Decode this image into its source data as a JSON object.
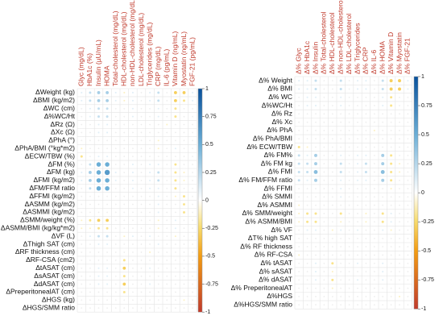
{
  "chart_data": [
    {
      "type": "corrplot",
      "columns": [
        "Glyc (mg/dL)",
        "HbA1c (%)",
        "Insulin (µU/mL)",
        "HOMA",
        "Total-cholesterol (mg/dL)",
        "HDL-cholesterol (mg/dL)",
        "non-HDL-cholesterol (mg/dL)",
        "LDL-cholesterol (mg/dL)",
        "Triglycerides (mg/dL)",
        "CRP (mg/dL)",
        "IL-6 (pg/mL)",
        "Vitamin D (ng/mL)",
        "Myostatin (ng/mL)",
        "FGF-21 (pg/mL)"
      ],
      "rows": [
        "ΔWeight (kg)",
        "ΔBMI (kg/m2)",
        "ΔWC (cm)",
        "Δ%WC/Ht",
        "ΔRz (Ω)",
        "ΔXc (Ω)",
        "ΔPhA (°)",
        "ΔPhA/BMI (°kg*m2)",
        "ΔECW/TBW (%)",
        "ΔFM (%)",
        "ΔFM (kg)",
        "ΔFMI (kg/m2)",
        "ΔFM/FFM ratio",
        "ΔFFMI (kg/m2)",
        "ΔASMM (kg/m2)",
        "ΔASMMI (kg/m2)",
        "ΔSMM/weight (%)",
        "ΔASMM/BMI (kg/kg*m2)",
        "ΔVF (L)",
        "ΔThigh SAT (cm)",
        "ΔRF thickness (cm)",
        "ΔRF-CSA (cm2)",
        "ΔtASAT (cm)",
        "ΔsASAT (cm)",
        "ΔdASAT (cm)",
        "ΔPreperitonealAT (cm)",
        "ΔHGS (kg)",
        "ΔHGS/SMM ratio"
      ],
      "values": [
        [
          0.1,
          0.2,
          0.3,
          0.3,
          0.1,
          -0.1,
          0.1,
          0,
          0.1,
          0.2,
          0,
          -0.3,
          -0.3,
          0.1
        ],
        [
          0.1,
          0.2,
          0.3,
          0.3,
          0.1,
          -0.1,
          0.1,
          0,
          0.1,
          0.2,
          0,
          -0.3,
          -0.2,
          0.1
        ],
        [
          0,
          0.1,
          0.2,
          0.2,
          0,
          0,
          0.1,
          0,
          0,
          0.1,
          0,
          -0.2,
          0,
          0
        ],
        [
          0,
          0.1,
          0.2,
          0.2,
          0,
          0,
          0.1,
          0,
          0,
          0.1,
          0,
          -0.2,
          0,
          0
        ],
        [
          0,
          0,
          0.1,
          0.1,
          0,
          0,
          0,
          0,
          0,
          0,
          -0.1,
          0,
          0,
          0
        ],
        [
          0,
          0,
          0.1,
          0.1,
          0,
          0,
          0,
          0,
          0,
          0,
          0,
          0,
          0,
          0
        ],
        [
          0,
          0,
          0,
          0,
          0,
          0,
          0,
          0,
          0,
          -0.1,
          0,
          0,
          0,
          0
        ],
        [
          -0.1,
          0,
          0,
          0,
          0,
          0,
          0,
          0,
          0,
          -0.1,
          0,
          0.1,
          0,
          0
        ],
        [
          -0.2,
          0,
          0.1,
          0.1,
          0,
          0,
          0,
          0,
          0,
          0,
          0,
          0,
          0,
          0
        ],
        [
          0,
          0.2,
          0.5,
          0.5,
          0,
          0,
          0.1,
          0,
          0.1,
          0.1,
          0,
          -0.2,
          0,
          0
        ],
        [
          0.1,
          0.3,
          0.5,
          0.6,
          0.1,
          0,
          0.1,
          0,
          0.1,
          0.2,
          0,
          -0.2,
          -0.1,
          0
        ],
        [
          0.1,
          0.3,
          0.5,
          0.5,
          0.1,
          0,
          0.1,
          0,
          0.1,
          0.2,
          0,
          -0.2,
          -0.1,
          0
        ],
        [
          0,
          0.2,
          0.5,
          0.5,
          0,
          0,
          0.1,
          0,
          0.1,
          0.1,
          0,
          -0.2,
          0,
          0
        ],
        [
          0,
          0,
          0,
          0,
          0,
          0,
          0,
          0,
          0,
          0.1,
          0,
          -0.1,
          -0.2,
          0
        ],
        [
          0,
          0,
          0,
          0,
          0,
          0,
          0,
          0,
          0,
          0.1,
          0,
          0,
          -0.2,
          0
        ],
        [
          0,
          0,
          0,
          0,
          0,
          0,
          0,
          0,
          0,
          0.1,
          0,
          0,
          -0.2,
          0
        ],
        [
          -0.1,
          -0.2,
          -0.3,
          -0.3,
          0,
          0,
          0,
          0,
          0,
          -0.1,
          0,
          0.1,
          0,
          0
        ],
        [
          -0.1,
          -0.1,
          -0.2,
          -0.2,
          0,
          0,
          0,
          0,
          0,
          -0.1,
          0,
          0.1,
          0,
          0
        ],
        [
          0,
          0.1,
          0.2,
          0.2,
          0,
          -0.1,
          0.1,
          0,
          0.1,
          0,
          0,
          -0.1,
          0,
          0
        ],
        [
          0,
          0,
          0.1,
          0.1,
          0,
          0,
          0,
          0,
          0,
          0.1,
          0,
          0,
          0,
          0
        ],
        [
          0,
          0,
          0,
          0,
          0,
          0,
          0,
          0,
          -0.1,
          0,
          0,
          0,
          0,
          0
        ],
        [
          0,
          0,
          0,
          0,
          0,
          -0.2,
          0,
          0,
          0,
          0,
          0,
          0,
          0,
          0
        ],
        [
          0,
          0,
          0.1,
          0.1,
          0,
          -0.3,
          0,
          0,
          0.1,
          0,
          0,
          0,
          0,
          0
        ],
        [
          0,
          0,
          0.1,
          0.1,
          0,
          -0.2,
          0,
          0,
          0,
          0,
          0,
          0,
          0,
          0
        ],
        [
          0,
          0,
          0.1,
          0.1,
          0,
          -0.3,
          0,
          0,
          0.1,
          0,
          0,
          0,
          0,
          0
        ],
        [
          0,
          0,
          0,
          0,
          0,
          -0.2,
          0,
          0,
          0,
          0,
          0,
          0,
          0,
          0
        ],
        [
          0,
          0,
          0,
          0,
          0,
          0,
          0,
          0,
          0,
          0,
          0,
          0,
          -0.1,
          0
        ],
        [
          0,
          0,
          0,
          0,
          0,
          0,
          0,
          0,
          0,
          0,
          0,
          0,
          0,
          0
        ]
      ],
      "clim": [
        -1,
        1
      ],
      "cticks": [
        1,
        0.75,
        0.5,
        0.25,
        0,
        -0.25,
        -0.5,
        -0.75,
        -1
      ]
    },
    {
      "type": "corrplot",
      "columns": [
        "Δ% Glyc",
        "Δ% HbA1c",
        "Δ% Insulin",
        "Δ% Total-cholesterol",
        "Δ% HDL-cholesterol",
        "Δ% non-HDL-cholesterol",
        "Δ% LDL-cholesterol",
        "Δ% Triglycerides",
        "Δ% CRP",
        "Δ% IL-6",
        "Δ% HOMA",
        "Δ% Vitamin D",
        "Δ% Myostatin",
        "Δ% FGF-21"
      ],
      "rows": [
        "Δ% Weight",
        "Δ% BMI",
        "Δ% WC",
        "Δ%WC/Ht",
        "Δ% Rz",
        "Δ% Xc",
        "Δ% PhA",
        "Δ% PhA/BMI",
        "Δ% ECW/TBW",
        "Δ% FM%",
        "Δ% FM kg",
        "Δ% FMI",
        "Δ% FM/FFM ratio",
        "Δ% FFMI",
        "Δ% SMMI",
        "Δ% ASMMI",
        "Δ% SMM/weight",
        "Δ% ASMM/BMI",
        "Δ% VF",
        "ΔT% high SAT",
        "Δ% RF thickness",
        "Δ% RF-CSA",
        "Δ% tASAT",
        "Δ% sASAT",
        "Δ% dASAT",
        "Δ% PreperitonealAT",
        "Δ%HGS",
        "Δ%HGS/SMM ratio"
      ],
      "values": [
        [
          0.1,
          0.1,
          0.2,
          0,
          0,
          0.2,
          0,
          0.1,
          0.1,
          0,
          0.2,
          -0.3,
          -0.3,
          0.1
        ],
        [
          0.1,
          0.1,
          0.2,
          0,
          0,
          0.2,
          0,
          0.1,
          0.1,
          0,
          0.2,
          -0.3,
          -0.3,
          0.1
        ],
        [
          0,
          0.1,
          0.1,
          0,
          0,
          0.1,
          0,
          0,
          0,
          0,
          0.1,
          -0.2,
          0,
          0
        ],
        [
          0,
          0.1,
          0.1,
          0,
          0,
          0.1,
          0,
          0,
          0,
          0,
          0.1,
          -0.2,
          0,
          0
        ],
        [
          0,
          0,
          0,
          0,
          0,
          0,
          0,
          0,
          0,
          0,
          0,
          0,
          0,
          0
        ],
        [
          0,
          0,
          0,
          0,
          0,
          0,
          0,
          0,
          0,
          0,
          0,
          0,
          0,
          0
        ],
        [
          0,
          0,
          0,
          0,
          0,
          0,
          0,
          0,
          0,
          -0.1,
          0,
          0,
          0,
          0
        ],
        [
          0,
          0,
          0,
          0,
          0,
          0,
          0,
          0,
          0,
          0,
          0,
          0,
          0,
          0
        ],
        [
          -0.2,
          -0.1,
          0,
          0,
          0,
          0,
          0,
          0,
          0,
          0,
          0,
          0,
          0,
          0
        ],
        [
          0.2,
          0.1,
          0.3,
          0,
          0,
          0.1,
          0,
          0.1,
          0.1,
          0,
          0.3,
          -0.2,
          0,
          0
        ],
        [
          0.2,
          0.2,
          0.3,
          0,
          0,
          0.2,
          0,
          0.1,
          0.2,
          0,
          0.3,
          -0.2,
          -0.1,
          0
        ],
        [
          0.2,
          0.2,
          0.4,
          0,
          0,
          0.2,
          0,
          0.1,
          0.2,
          0,
          0.4,
          -0.2,
          -0.1,
          0
        ],
        [
          0.2,
          0.1,
          0.3,
          0,
          0,
          0.1,
          0,
          0.1,
          0.1,
          0,
          0.3,
          -0.2,
          0,
          0
        ],
        [
          0,
          0,
          0,
          0,
          0,
          0.1,
          0,
          0,
          0,
          0,
          0,
          -0.1,
          0,
          0
        ],
        [
          0,
          0,
          0,
          0,
          0,
          0.1,
          0,
          0,
          0,
          0,
          0,
          0,
          0,
          0
        ],
        [
          -0.1,
          0,
          0,
          0,
          0,
          0,
          0,
          0,
          0,
          0,
          0,
          0,
          0,
          0
        ],
        [
          -0.1,
          -0.2,
          -0.2,
          0,
          0,
          -0.2,
          0,
          0,
          -0.1,
          0,
          -0.2,
          0.1,
          0,
          0
        ],
        [
          -0.1,
          -0.2,
          -0.2,
          0,
          0,
          -0.1,
          0,
          0,
          -0.1,
          0,
          -0.2,
          0.1,
          0,
          0
        ],
        [
          0,
          0.1,
          0.1,
          0,
          -0.1,
          0.1,
          0,
          0.1,
          0,
          0,
          0.1,
          -0.1,
          0,
          0
        ],
        [
          0,
          0,
          0,
          0,
          0,
          0,
          0,
          0,
          0,
          0,
          0,
          0,
          0,
          0
        ],
        [
          0,
          0,
          0,
          0,
          0,
          0,
          0,
          0,
          0,
          0,
          0,
          0,
          0,
          0
        ],
        [
          -0.1,
          0,
          0,
          0,
          0,
          0,
          0,
          0,
          0,
          0,
          0,
          0,
          0,
          0
        ],
        [
          0,
          0,
          0.1,
          0,
          -0.2,
          0,
          0,
          0.1,
          0,
          0,
          0.1,
          0,
          0,
          0
        ],
        [
          0,
          0,
          0.1,
          0,
          -0.1,
          0,
          0,
          0,
          0,
          0,
          0.1,
          0,
          0,
          0
        ],
        [
          0,
          0,
          0.1,
          0,
          -0.2,
          0,
          0,
          0.1,
          0,
          0,
          0.1,
          0,
          0,
          0
        ],
        [
          0,
          0,
          0,
          0,
          -0.1,
          0,
          0,
          0,
          0,
          0,
          0,
          0,
          0,
          0
        ],
        [
          0,
          0,
          0,
          0,
          0,
          0,
          0,
          0,
          0,
          0,
          0,
          0,
          -0.1,
          0
        ],
        [
          0,
          0,
          0,
          0,
          0,
          0,
          0,
          0,
          0,
          0,
          0,
          0,
          0,
          0
        ]
      ],
      "clim": [
        -1,
        1
      ],
      "cticks": [
        1,
        0.75,
        0.5,
        0.25,
        0,
        -0.25,
        -0.5,
        -0.75,
        -1
      ]
    }
  ]
}
